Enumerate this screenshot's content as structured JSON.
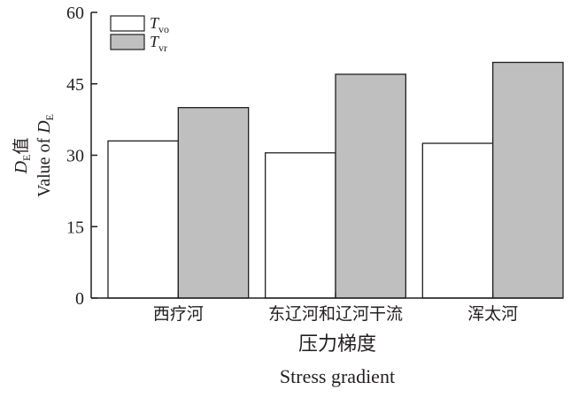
{
  "chart_data": {
    "type": "bar",
    "categories": [
      "西疗河",
      "东辽河和辽河干流",
      "浑太河"
    ],
    "series": [
      {
        "name_main": "T",
        "name_sub": "vo",
        "values": [
          33,
          30.5,
          32.5
        ],
        "color": "#ffffff"
      },
      {
        "name_main": "T",
        "name_sub": "vr",
        "values": [
          40,
          47,
          49.5
        ],
        "color": "#bfbfbf"
      }
    ],
    "xlabel": {
      "cn": "压力梯度",
      "en": "Stress gradient"
    },
    "ylabel": {
      "line1": {
        "main": "D",
        "sub": "E",
        "cn": "值"
      },
      "line2": {
        "text": "Value of ",
        "main": "D",
        "sub": "E"
      }
    },
    "ylim": [
      0,
      60
    ],
    "yticks": [
      "0",
      "15",
      "30",
      "45",
      "60"
    ],
    "legend_position": "top-left",
    "grid": false
  }
}
